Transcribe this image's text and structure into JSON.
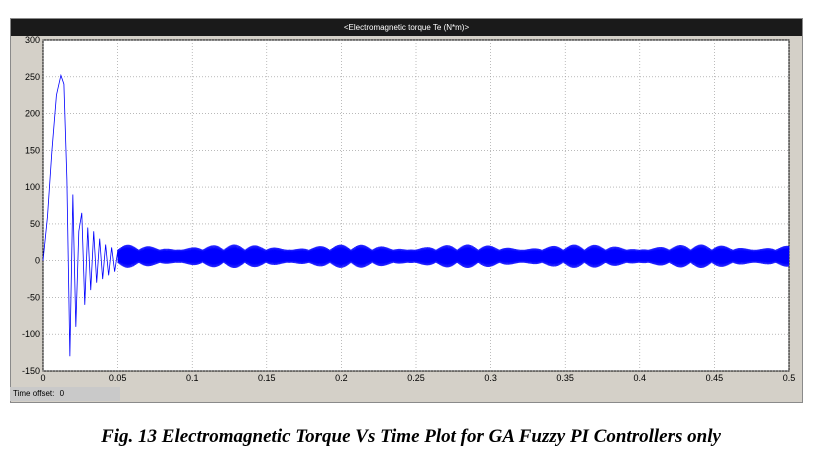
{
  "scope": {
    "title": "<Electromagnetic torque Te (N*m)>",
    "time_offset_label": "Time offset:",
    "time_offset_value": "0"
  },
  "caption": "Fig. 13 Electromagnetic Torque Vs Time Plot for GA Fuzzy PI Controllers only",
  "colors": {
    "trace": "#0000ff",
    "background": "#ffffff",
    "grid": "#909090",
    "frame": "#d4d0c8"
  },
  "chart_data": {
    "type": "line",
    "title": "<Electromagnetic torque Te (N*m)>",
    "xlabel": "",
    "ylabel": "",
    "xlim": [
      0,
      0.5
    ],
    "ylim": [
      -150,
      300
    ],
    "grid": true,
    "x_ticks": [
      "0",
      "0.05",
      "0.1",
      "0.15",
      "0.2",
      "0.25",
      "0.3",
      "0.35",
      "0.4",
      "0.45",
      "0.5"
    ],
    "y_ticks": [
      "300",
      "250",
      "200",
      "150",
      "100",
      "50",
      "0",
      "-50",
      "-100",
      "-150"
    ],
    "series": [
      {
        "values_note": "",
        "x": [
          0,
          0.003,
          0.006,
          0.009,
          0.012,
          0.014,
          0.016,
          0.018,
          0.02,
          0.022,
          0.024,
          0.026,
          0.028,
          0.03,
          0.032,
          0.034,
          0.036,
          0.038,
          0.04,
          0.042,
          0.044,
          0.046,
          0.048,
          0.05,
          0.05,
          0.5
        ],
        "y": [
          0,
          60,
          150,
          225,
          252,
          240,
          110,
          -130,
          90,
          -90,
          40,
          65,
          -60,
          45,
          -40,
          40,
          -30,
          30,
          -25,
          22,
          -20,
          18,
          -15,
          12,
          12,
          12
        ]
      }
    ],
    "steady_state": {
      "x_start": 0.05,
      "x_end": 0.5,
      "min": -10,
      "max": 22
    }
  }
}
